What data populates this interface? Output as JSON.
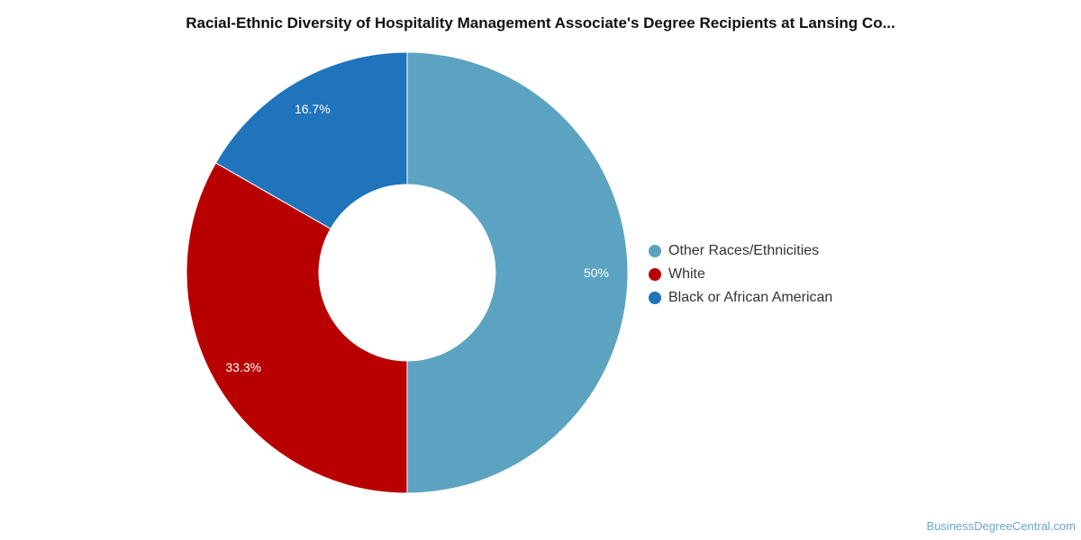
{
  "chart_data": {
    "type": "pie",
    "title": "Racial-Ethnic Diversity of Hospitality Management Associate's Degree Recipients at Lansing Co...",
    "slices": [
      {
        "label": "Other Races/Ethnicities",
        "value": 50,
        "display": "50%",
        "color": "#5ba3c1"
      },
      {
        "label": "White",
        "value": 33.3,
        "display": "33.3%",
        "color": "#b90000"
      },
      {
        "label": "Black or African American",
        "value": 16.7,
        "display": "16.7%",
        "color": "#1f74bb"
      }
    ],
    "donut": true,
    "legend_position": "right"
  },
  "watermark": "BusinessDegreeCentral.com"
}
